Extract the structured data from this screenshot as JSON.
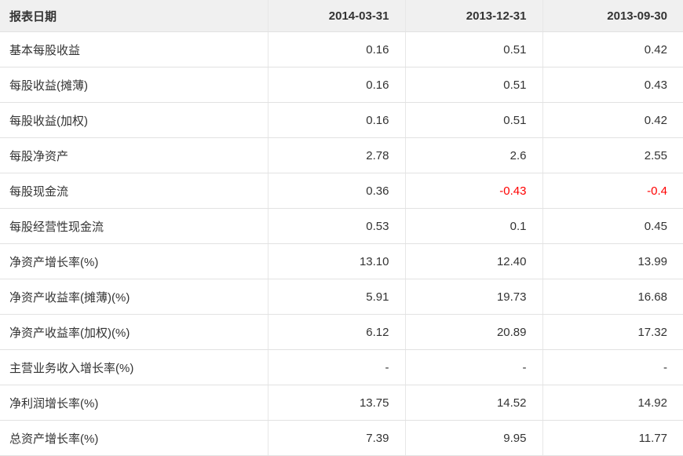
{
  "table": {
    "header": {
      "label": "报表日期",
      "dates": [
        "2014-03-31",
        "2013-12-31",
        "2013-09-30"
      ]
    },
    "rows": [
      {
        "label": "基本每股收益",
        "values": [
          "0.16",
          "0.51",
          "0.42"
        ]
      },
      {
        "label": "每股收益(摊薄)",
        "values": [
          "0.16",
          "0.51",
          "0.43"
        ]
      },
      {
        "label": "每股收益(加权)",
        "values": [
          "0.16",
          "0.51",
          "0.42"
        ]
      },
      {
        "label": "每股净资产",
        "values": [
          "2.78",
          "2.6",
          "2.55"
        ]
      },
      {
        "label": "每股现金流",
        "values": [
          "0.36",
          "-0.43",
          "-0.4"
        ]
      },
      {
        "label": "每股经营性现金流",
        "values": [
          "0.53",
          "0.1",
          "0.45"
        ]
      },
      {
        "label": "净资产增长率(%)",
        "values": [
          "13.10",
          "12.40",
          "13.99"
        ]
      },
      {
        "label": "净资产收益率(摊薄)(%)",
        "values": [
          "5.91",
          "19.73",
          "16.68"
        ]
      },
      {
        "label": "净资产收益率(加权)(%)",
        "values": [
          "6.12",
          "20.89",
          "17.32"
        ]
      },
      {
        "label": "主营业务收入增长率(%)",
        "values": [
          "-",
          "-",
          "-"
        ]
      },
      {
        "label": "净利润增长率(%)",
        "values": [
          "13.75",
          "14.52",
          "14.92"
        ]
      },
      {
        "label": "总资产增长率(%)",
        "values": [
          "7.39",
          "9.95",
          "11.77"
        ]
      }
    ],
    "colors": {
      "negative_value": "#ff0000",
      "header_background": "#f0f0f0",
      "row_border": "#e2e2e2",
      "text": "#333333"
    }
  }
}
